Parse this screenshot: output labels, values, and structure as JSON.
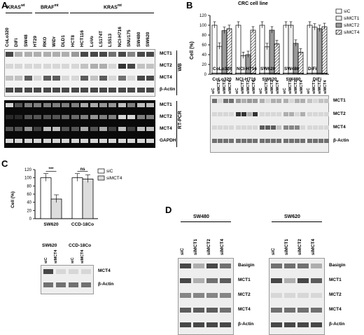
{
  "panels": {
    "a": "A",
    "b": "B",
    "c": "C",
    "d": "D"
  },
  "A": {
    "groups": {
      "kraswt": "KRAS",
      "kraswt_sup": "wt",
      "brafmt": "BRAF",
      "brafmt_sup": "mt",
      "krasmt": "KRAS",
      "krasmt_sup": "mt"
    },
    "lanes": [
      "CoLo320",
      "DiFi",
      "SW48",
      "HT29",
      "RKO",
      "WiDr",
      "DLD1",
      "HCT8",
      "HCT116",
      "LoVo",
      "LS174T",
      "LS513",
      "NCI-H716",
      "SNU175",
      "SW480",
      "SW620"
    ],
    "wb_labels": [
      "MCT1",
      "MCT2",
      "MCT4",
      "β-Actin"
    ],
    "rt_labels": [
      "MCT1",
      "MCT2",
      "MCT4",
      "GAPDH"
    ],
    "side_wb": "WB",
    "side_rt": "RT-PCR"
  },
  "B": {
    "title": "CRC cell line",
    "ylabel": "Cell (%)",
    "legend": [
      "siC",
      "siMCT1",
      "siMCT2",
      "siMCT4"
    ],
    "cell_lines": [
      "CoLo320",
      "NCI-H716",
      "SW620",
      "SW480",
      "DiFi"
    ],
    "lane_labels": [
      "siC",
      "siMCT1",
      "siMCT2",
      "siMCT4"
    ],
    "blot_labels": [
      "MCT1",
      "MCT2",
      "MCT4",
      "β-Actin"
    ],
    "yticks": [
      "0",
      "20",
      "40",
      "60",
      "80",
      "100",
      "120"
    ]
  },
  "C": {
    "ylabel": "Cell (%)",
    "legend": [
      "siC",
      "siMCT4"
    ],
    "groups": [
      "SW620",
      "CCD-18Co"
    ],
    "sig": [
      "***",
      "ns"
    ],
    "lane_labels": [
      "siC",
      "siMCT4"
    ],
    "blot_labels": [
      "MCT4",
      "β-Actin"
    ],
    "yticks": [
      "0",
      "20",
      "40",
      "60",
      "80",
      "100",
      "120"
    ]
  },
  "D": {
    "cells": [
      "SW480",
      "SW620"
    ],
    "lane_labels": [
      "siC",
      "siMCT1",
      "siMCT2",
      "siMCT4"
    ],
    "blot_labels": [
      "Basigin",
      "MCT1",
      "MCT2",
      "MCT4",
      "β-Actin"
    ]
  },
  "chart_data": [
    {
      "type": "bar",
      "title": "CRC cell line",
      "ylabel": "Cell (%)",
      "ylim": [
        0,
        120
      ],
      "categories": [
        "CoLo320",
        "NCI-H716",
        "SW620",
        "SW480",
        "DiFi"
      ],
      "series": [
        {
          "name": "siC",
          "values": [
            100,
            100,
            100,
            100,
            100
          ]
        },
        {
          "name": "siMCT1",
          "values": [
            57,
            38,
            56,
            100,
            96
          ]
        },
        {
          "name": "siMCT2",
          "values": [
            89,
            40,
            90,
            63,
            93
          ]
        },
        {
          "name": "siMCT4",
          "values": [
            93,
            90,
            62,
            45,
            97
          ]
        }
      ]
    },
    {
      "type": "bar",
      "ylabel": "Cell (%)",
      "ylim": [
        0,
        120
      ],
      "categories": [
        "SW620",
        "CCD-18Co"
      ],
      "series": [
        {
          "name": "siC",
          "values": [
            100,
            100
          ]
        },
        {
          "name": "siMCT4",
          "values": [
            48,
            97
          ]
        }
      ]
    }
  ]
}
